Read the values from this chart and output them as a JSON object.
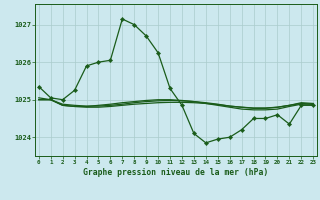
{
  "title": "Graphe pression niveau de la mer (hPa)",
  "bg_color": "#cce8ee",
  "grid_color": "#aacccc",
  "line_color": "#1a5c1a",
  "xlim": [
    -0.3,
    23.3
  ],
  "ylim": [
    1023.5,
    1027.55
  ],
  "yticks": [
    1024,
    1025,
    1026,
    1027
  ],
  "xticks": [
    0,
    1,
    2,
    3,
    4,
    5,
    6,
    7,
    8,
    9,
    10,
    11,
    12,
    13,
    14,
    15,
    16,
    17,
    18,
    19,
    20,
    21,
    22,
    23
  ],
  "main_y": [
    1025.35,
    1025.05,
    1025.0,
    1025.25,
    1025.9,
    1026.0,
    1026.05,
    1027.15,
    1027.0,
    1026.7,
    1026.25,
    1025.3,
    1024.85,
    1024.1,
    1023.85,
    1023.95,
    1024.0,
    1024.2,
    1024.5,
    1024.5,
    1024.6,
    1024.35,
    1024.85,
    1024.85
  ],
  "flat1_y": [
    1025.0,
    1025.0,
    1024.85,
    1024.82,
    1024.8,
    1024.8,
    1024.82,
    1024.85,
    1024.88,
    1024.9,
    1024.92,
    1024.93,
    1024.93,
    1024.92,
    1024.9,
    1024.87,
    1024.83,
    1024.8,
    1024.78,
    1024.78,
    1024.8,
    1024.85,
    1024.9,
    1024.88
  ],
  "flat2_y": [
    1025.0,
    1025.0,
    1024.85,
    1024.82,
    1024.82,
    1024.85,
    1024.88,
    1024.92,
    1024.95,
    1024.98,
    1025.0,
    1025.0,
    1024.98,
    1024.95,
    1024.9,
    1024.85,
    1024.8,
    1024.75,
    1024.73,
    1024.73,
    1024.75,
    1024.82,
    1024.88,
    1024.88
  ],
  "flat3_y": [
    1025.05,
    1025.0,
    1024.88,
    1024.85,
    1024.83,
    1024.83,
    1024.85,
    1024.88,
    1024.92,
    1024.95,
    1024.97,
    1024.98,
    1024.97,
    1024.95,
    1024.92,
    1024.88,
    1024.83,
    1024.8,
    1024.77,
    1024.77,
    1024.8,
    1024.85,
    1024.92,
    1024.9
  ]
}
